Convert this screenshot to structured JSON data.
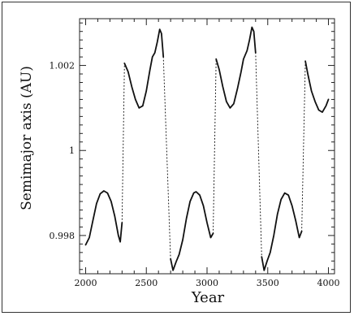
{
  "chart_data": {
    "type": "line",
    "title": "",
    "xlabel": "Year",
    "ylabel": "Semimajor axis (AU)",
    "xlim": [
      1950,
      4050
    ],
    "ylim": [
      0.9971,
      1.0031
    ],
    "xticks": [
      2000,
      2500,
      3000,
      3500,
      4000
    ],
    "yticks": [
      0.998,
      1,
      1.002
    ],
    "ytick_labels": [
      "0.998",
      "1",
      "1.002"
    ],
    "grid": false,
    "series": [
      {
        "name": "",
        "style": "solid",
        "points": [
          [
            2000,
            0.99778
          ],
          [
            2030,
            0.99795
          ],
          [
            2060,
            0.99835
          ],
          [
            2090,
            0.99875
          ],
          [
            2120,
            0.99898
          ],
          [
            2150,
            0.99905
          ],
          [
            2180,
            0.999
          ],
          [
            2210,
            0.9988
          ],
          [
            2240,
            0.99845
          ],
          [
            2270,
            0.998
          ],
          [
            2285,
            0.99785
          ],
          [
            2300,
            0.9983
          ]
        ]
      },
      {
        "name": "",
        "style": "dotted",
        "points": [
          [
            2300,
            0.9983
          ],
          [
            2320,
            1.00205
          ]
        ]
      },
      {
        "name": "",
        "style": "solid",
        "points": [
          [
            2320,
            1.00205
          ],
          [
            2350,
            1.00185
          ],
          [
            2380,
            1.0015
          ],
          [
            2410,
            1.0012
          ],
          [
            2440,
            1.001
          ],
          [
            2470,
            1.00105
          ],
          [
            2500,
            1.0014
          ],
          [
            2530,
            1.0019
          ],
          [
            2550,
            1.0022
          ],
          [
            2570,
            1.0023
          ],
          [
            2590,
            1.00255
          ],
          [
            2610,
            1.00285
          ],
          [
            2625,
            1.00275
          ],
          [
            2640,
            1.0022
          ]
        ]
      },
      {
        "name": "",
        "style": "dotted",
        "points": [
          [
            2640,
            1.0022
          ],
          [
            2700,
            0.99745
          ]
        ]
      },
      {
        "name": "",
        "style": "solid",
        "points": [
          [
            2700,
            0.99745
          ],
          [
            2720,
            0.99718
          ],
          [
            2745,
            0.99738
          ],
          [
            2770,
            0.99755
          ],
          [
            2800,
            0.9979
          ],
          [
            2830,
            0.9984
          ],
          [
            2860,
            0.9988
          ],
          [
            2890,
            0.999
          ],
          [
            2910,
            0.99903
          ],
          [
            2940,
            0.99895
          ],
          [
            2970,
            0.9987
          ],
          [
            3000,
            0.9983
          ],
          [
            3030,
            0.99795
          ],
          [
            3050,
            0.99805
          ]
        ]
      },
      {
        "name": "",
        "style": "dotted",
        "points": [
          [
            3050,
            0.99805
          ],
          [
            3075,
            1.00215
          ]
        ]
      },
      {
        "name": "",
        "style": "solid",
        "points": [
          [
            3075,
            1.00215
          ],
          [
            3100,
            1.0019
          ],
          [
            3130,
            1.0015
          ],
          [
            3160,
            1.00115
          ],
          [
            3190,
            1.001
          ],
          [
            3220,
            1.0011
          ],
          [
            3250,
            1.00145
          ],
          [
            3280,
            1.00185
          ],
          [
            3300,
            1.00215
          ],
          [
            3330,
            1.00235
          ],
          [
            3350,
            1.0026
          ],
          [
            3370,
            1.0029
          ],
          [
            3385,
            1.0028
          ],
          [
            3400,
            1.0023
          ]
        ]
      },
      {
        "name": "",
        "style": "dotted",
        "points": [
          [
            3400,
            1.0023
          ],
          [
            3450,
            0.9975
          ]
        ]
      },
      {
        "name": "",
        "style": "solid",
        "points": [
          [
            3450,
            0.9975
          ],
          [
            3470,
            0.99718
          ],
          [
            3495,
            0.9974
          ],
          [
            3520,
            0.9976
          ],
          [
            3550,
            0.998
          ],
          [
            3580,
            0.9985
          ],
          [
            3610,
            0.99885
          ],
          [
            3640,
            0.999
          ],
          [
            3670,
            0.99895
          ],
          [
            3700,
            0.9987
          ],
          [
            3730,
            0.99835
          ],
          [
            3760,
            0.99795
          ],
          [
            3780,
            0.9981
          ]
        ]
      },
      {
        "name": "",
        "style": "dotted",
        "points": [
          [
            3780,
            0.9981
          ],
          [
            3810,
            1.0021
          ]
        ]
      },
      {
        "name": "",
        "style": "solid",
        "points": [
          [
            3810,
            1.0021
          ],
          [
            3830,
            1.0018
          ],
          [
            3860,
            1.0014
          ],
          [
            3890,
            1.00115
          ],
          [
            3920,
            1.00095
          ],
          [
            3950,
            1.0009
          ],
          [
            3980,
            1.00105
          ],
          [
            4000,
            1.0012
          ]
        ]
      }
    ]
  }
}
